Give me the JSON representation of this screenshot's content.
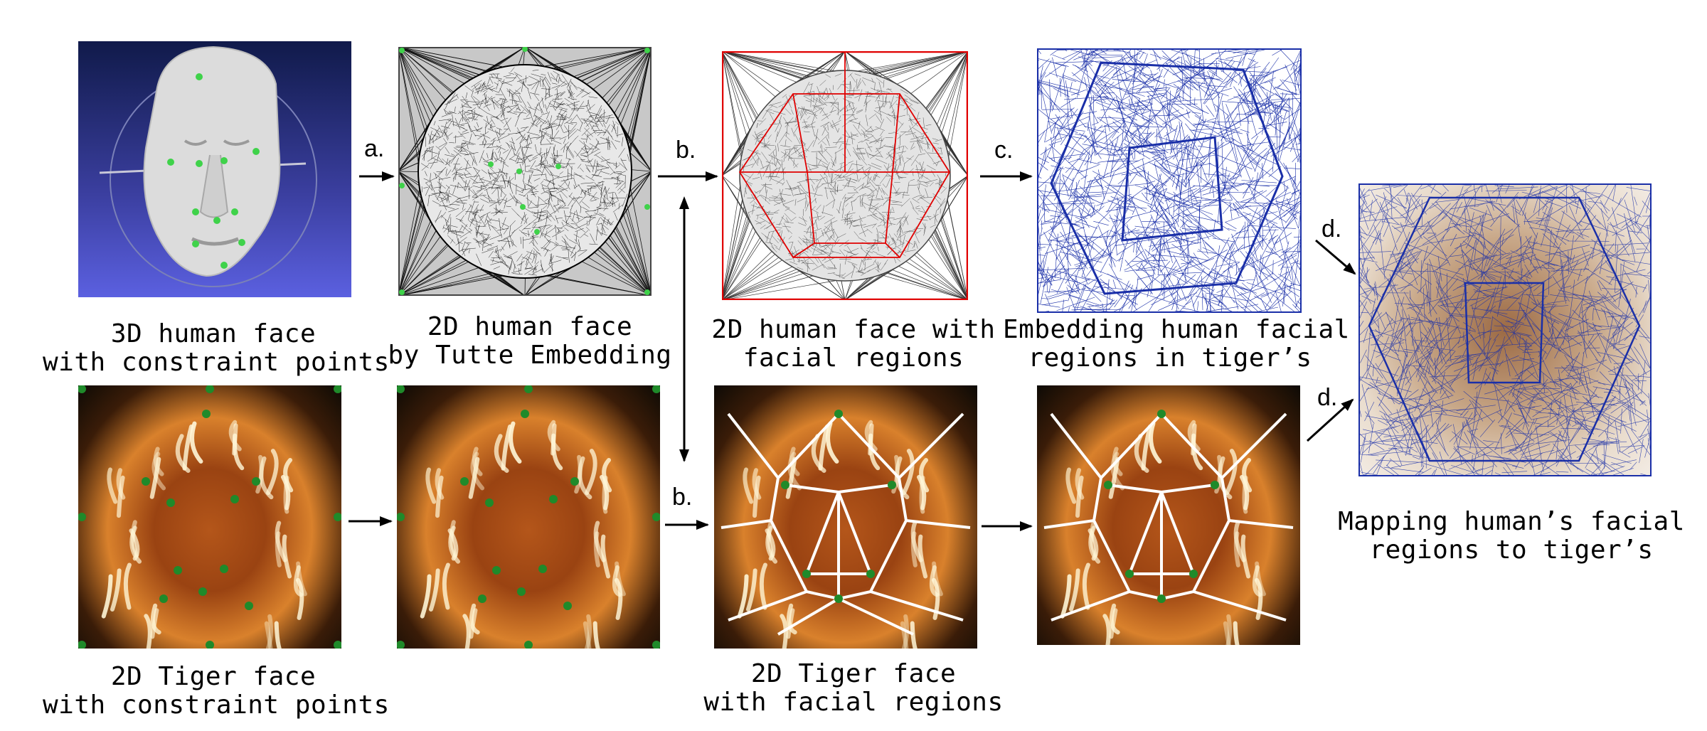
{
  "captions": {
    "human_3d": [
      "3D human face",
      "with constraint points"
    ],
    "tutte": [
      "2D human face",
      "by Tutte Embedding"
    ],
    "human_regions": [
      "2D human face with",
      "facial regions"
    ],
    "embedding": [
      "Embedding human facial",
      "regions in tiger’s"
    ],
    "mapping": [
      "Mapping human’s facial",
      "regions to tiger’s"
    ],
    "tiger_points": [
      "2D Tiger face",
      "with constraint points"
    ],
    "tiger_regions": [
      "2D Tiger face",
      "with facial regions"
    ]
  },
  "steps": {
    "a": "a.",
    "b_top": "b.",
    "b_bottom": "b.",
    "c": "c.",
    "d_top": "d.",
    "d_bottom": "d."
  },
  "colors": {
    "mesh_black": "#000000",
    "region_red": "#e00000",
    "mesh_blue": "#1a2fa8",
    "point_green": "#3fd24a",
    "tiger_point": "#1f8a2a",
    "background_blue": "#4a4fc8"
  }
}
